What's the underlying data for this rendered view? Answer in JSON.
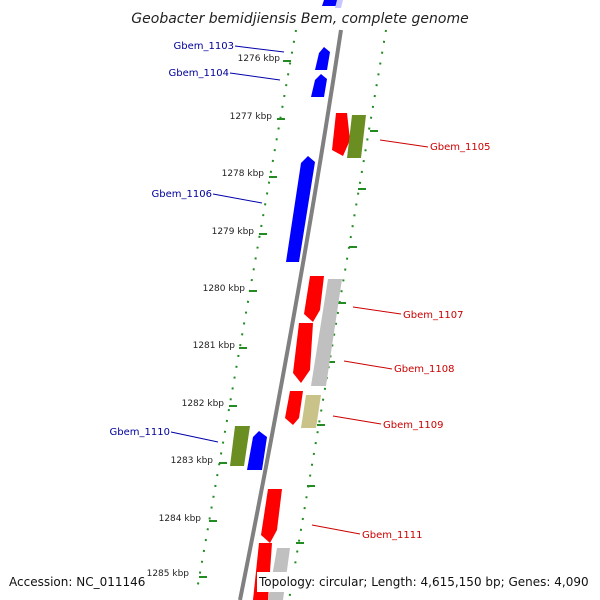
{
  "title": "Geobacter bemidjiensis Bem, complete genome",
  "accession": "Accession: NC_011146",
  "topology": "Topology: circular; Length: 4,615,150 bp; Genes: 4,090",
  "colors": {
    "forward": "#ff0000",
    "reverse": "#0000ff",
    "gray": "#c0c0c0",
    "olive": "#6b8e23",
    "khaki": "#c9c38a",
    "tick": "#228b22",
    "backbone": "#808080",
    "label_forward": "#cc0000",
    "label_reverse": "#000099"
  },
  "kbp_labels": [
    "1276 kbp",
    "1277 kbp",
    "1278 kbp",
    "1279 kbp",
    "1280 kbp",
    "1281 kbp",
    "1282 kbp",
    "1283 kbp",
    "1284 kbp",
    "1285 kbp"
  ],
  "gene_labels": [
    {
      "name": "Gbem_1103",
      "side": "left"
    },
    {
      "name": "Gbem_1104",
      "side": "left"
    },
    {
      "name": "Gbem_1105",
      "side": "right"
    },
    {
      "name": "Gbem_1106",
      "side": "left"
    },
    {
      "name": "Gbem_1107",
      "side": "right"
    },
    {
      "name": "Gbem_1108",
      "side": "right"
    },
    {
      "name": "Gbem_1109",
      "side": "right"
    },
    {
      "name": "Gbem_1110",
      "side": "left"
    },
    {
      "name": "Gbem_1111",
      "side": "right"
    }
  ]
}
